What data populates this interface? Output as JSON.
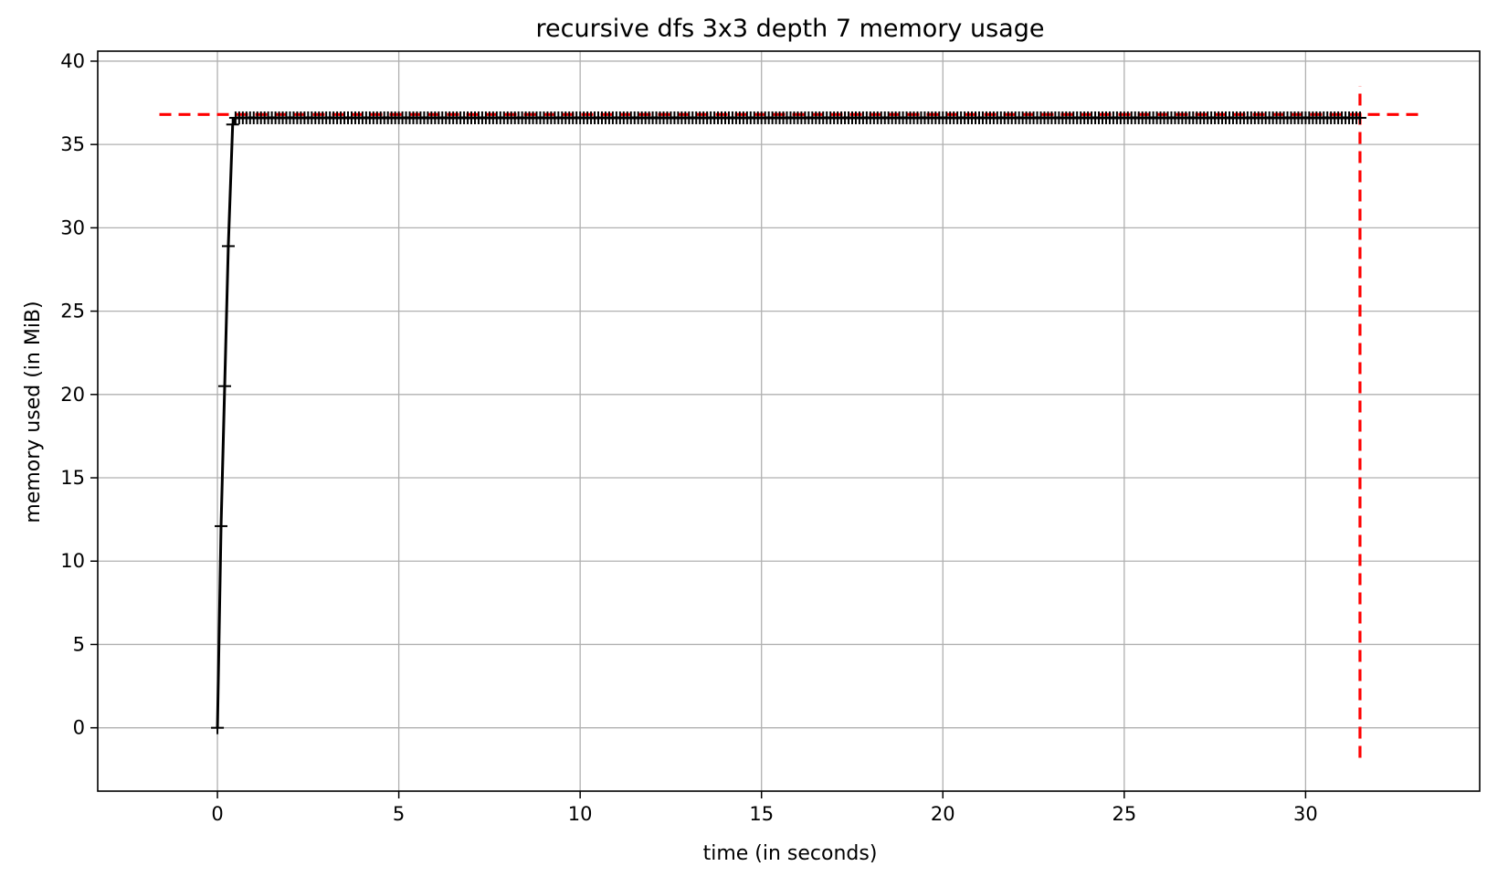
{
  "chart_data": {
    "type": "line",
    "title": "recursive dfs 3x3 depth 7 memory usage",
    "xlabel": "time (in seconds)",
    "ylabel": "memory used (in MiB)",
    "xlim": [
      -3.3,
      34.8
    ],
    "ylim": [
      -3.8,
      40.6
    ],
    "xticks": [
      0,
      5,
      10,
      15,
      20,
      25,
      30
    ],
    "yticks": [
      0,
      5,
      10,
      15,
      20,
      25,
      30,
      35,
      40
    ],
    "grid": true,
    "legend": "none",
    "series": [
      {
        "color": "#000000",
        "marker": "+",
        "ramp": [
          [
            0.0,
            0.0
          ],
          [
            0.1,
            12.1
          ],
          [
            0.2,
            20.5
          ],
          [
            0.3,
            28.9
          ],
          [
            0.42,
            36.2
          ],
          [
            0.5,
            36.6
          ]
        ],
        "plateau": {
          "start": 0.6,
          "end": 31.5,
          "step": 0.1,
          "value": 36.6
        }
      }
    ],
    "reference_lines": [
      {
        "orientation": "horizontal",
        "value": 36.8,
        "from": -1.6,
        "to": 33.1,
        "color": "#ff0000",
        "style": "dashed"
      },
      {
        "orientation": "vertical",
        "value": 31.5,
        "from": -1.8,
        "to": 38.5,
        "color": "#ff0000",
        "style": "dashed"
      }
    ]
  }
}
